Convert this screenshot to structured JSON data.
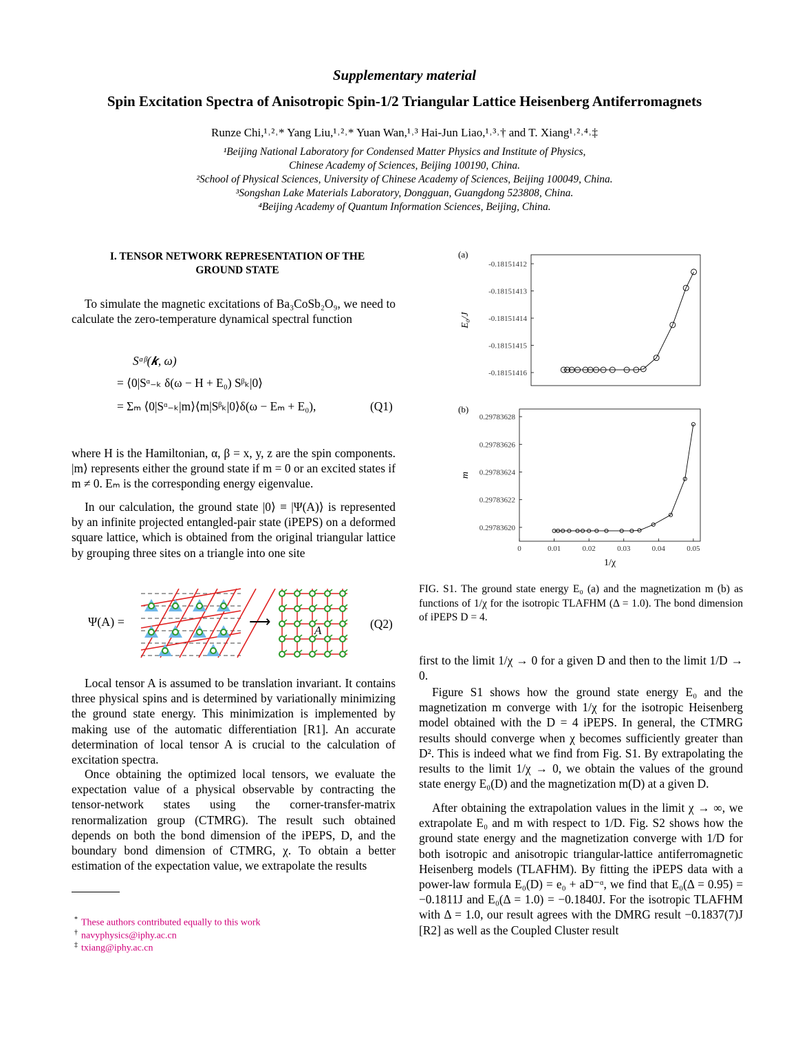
{
  "header": {
    "kind": "Supplementary material",
    "title": "Spin Excitation Spectra of Anisotropic Spin-1/2 Triangular Lattice Heisenberg Antiferromagnets",
    "authors": "Runze Chi,¹˒²˒* Yang Liu,¹˒²˒* Yuan Wan,¹˒³ Hai-Jun Liao,¹˒³˒† and T. Xiang¹˒²˒⁴˒‡",
    "affiliations": [
      "¹Beijing National Laboratory for Condensed Matter Physics and Institute of Physics,",
      "Chinese Academy of Sciences, Beijing 100190, China.",
      "²School of Physical Sciences, University of Chinese Academy of Sciences, Beijing 100049, China.",
      "³Songshan Lake Materials Laboratory, Dongguan, Guangdong 523808, China.",
      "⁴Beijing Academy of Quantum Information Sciences, Beijing, China."
    ]
  },
  "left": {
    "heading": "I.   TENSOR NETWORK REPRESENTATION OF THE GROUND STATE",
    "p1": "To simulate the magnetic excitations of Ba₃CoSb₂O₉, we need to calculate the zero-temperature dynamical spectral function",
    "equation": [
      "Sᵅᵝ(𝒌, ω)",
      "=  ⟨0|Sᵅ₋ₖ δ(ω − H + E₀) Sᵝₖ|0⟩",
      "=  Σₘ ⟨0|Sᵅ₋ₖ|m⟩⟨m|Sᵝₖ|0⟩δ(ω − Eₘ + E₀),"
    ],
    "eq1_label": "(Q1)",
    "p2": "where H is the Hamiltonian, α, β = x, y, z are the spin components. |m⟩ represents either the ground state if m = 0 or an excited states if m ≠ 0. Eₘ is the corresponding energy eigenvalue.",
    "p3": "In our calculation, the ground state |0⟩ ≡ |Ψ(A)⟩ is represented by an infinite projected entangled-pair state (iPEPS) on a deformed square lattice, which is obtained from the original triangular lattice by grouping three sites on a triangle into one site",
    "eq2_lhs": "Ψ(A) =",
    "eq2_arrow": "⟶",
    "eq2_tensor": "A",
    "eq2_label": "(Q2)",
    "p4": "Local tensor A is assumed to be translation invariant. It contains three physical spins and is determined by variationally minimizing the ground state energy. This minimization is implemented by making use of the automatic differentiation [R1]. An accurate determination of local tensor A is crucial to the calculation of excitation spectra.",
    "p5": "Once obtaining the optimized local tensors, we evaluate the expectation value of a physical observable by contracting the tensor-network states using the corner-transfer-matrix renormalization group (CTMRG). The result such obtained depends on both the bond dimension of the iPEPS, D, and the boundary bond dimension of CTMRG, χ. To obtain a better estimation of the expectation value, we extrapolate the results",
    "footnotes": [
      {
        "mark": "*",
        "text": "These authors contributed equally to this work"
      },
      {
        "mark": "†",
        "text": "navyphysics@iphy.ac.cn"
      },
      {
        "mark": "‡",
        "text": "txiang@iphy.ac.cn"
      }
    ]
  },
  "chart_data": [
    {
      "type": "line",
      "panel_label": "(a)",
      "y_label": "E₀/J",
      "color": "#000000",
      "marker": "circle",
      "x": [
        0.01,
        0.0111,
        0.0125,
        0.0143,
        0.0167,
        0.0182,
        0.02,
        0.0222,
        0.025,
        0.0294,
        0.0323,
        0.0345,
        0.0385,
        0.0435,
        0.0476,
        0.05
      ],
      "values": [
        -0.181514159,
        -0.181514159,
        -0.181514159,
        -0.181514159,
        -0.181514159,
        -0.181514159,
        -0.181514159,
        -0.181514159,
        -0.181514159,
        -0.181514159,
        -0.181514159,
        -0.1815141587,
        -0.1815141546,
        -0.1815141425,
        -0.1815141289,
        -0.181514123
      ],
      "xlim": [
        0,
        0.052
      ],
      "ylim": [
        -0.1815141648,
        -0.1815141167
      ],
      "yticks": [
        -0.18151416,
        -0.18151415,
        -0.18151414,
        -0.18151413,
        -0.18151412
      ]
    },
    {
      "type": "line",
      "panel_label": "(b)",
      "y_label": "m",
      "x_label": "1/χ",
      "color": "#000000",
      "marker": "circle",
      "x": [
        0.01,
        0.0111,
        0.0125,
        0.0143,
        0.0167,
        0.0182,
        0.02,
        0.0222,
        0.025,
        0.0294,
        0.0323,
        0.0345,
        0.0385,
        0.0435,
        0.0476,
        0.05
      ],
      "values": [
        0.2978361975,
        0.2978361975,
        0.2978361975,
        0.2978361975,
        0.2978361975,
        0.2978361975,
        0.2978361975,
        0.2978361975,
        0.2978361975,
        0.2978361975,
        0.2978361975,
        0.2978361978,
        0.297836202,
        0.297836209,
        0.297836235,
        0.2978362745
      ],
      "xlim": [
        0,
        0.052
      ],
      "ylim": [
        0.29783619,
        0.2978362855
      ],
      "xticks": [
        0,
        0.01,
        0.02,
        0.03,
        0.04,
        0.05
      ],
      "yticks": [
        {
          "value": 0.2978362,
          "label": "0.29783620"
        },
        0.29783622,
        0.29783624,
        0.29783626,
        0.29783628
      ]
    }
  ],
  "figure": {
    "caption": "FIG. S1.   The ground state energy E₀ (a) and the magnetization m (b) as functions of 1/χ for the isotropic TLAFHM (Δ = 1.0). The bond dimension of iPEPS D = 4."
  },
  "right": {
    "p1": "first to the limit 1/χ → 0 for a given D and then to the limit 1/D → 0.",
    "p2": "Figure S1 shows how the ground state energy E₀ and the magnetization m converge with 1/χ for the isotropic Heisenberg model obtained with the D = 4 iPEPS. In general, the CTMRG results should converge when χ becomes sufficiently greater than D². This is indeed what we find from Fig. S1. By extrapolating the results to the limit 1/χ → 0, we obtain the values of the ground state energy E₀(D) and the magnetization m(D) at a given D.",
    "p3": "After obtaining the extrapolation values in the limit χ → ∞, we extrapolate E₀ and m with respect to 1/D. Fig. S2 shows how the ground state energy and the magnetization converge with 1/D for both isotropic and anisotropic triangular-lattice antiferromagnetic Heisenberg models (TLAFHM). By fitting the iPEPS data with a power-law formula E₀(D) = e₀ + aD⁻ᵅ, we find that E₀(Δ = 0.95) = −0.1811J and E₀(Δ = 1.0) = −0.1840J.  For the isotropic TLAFHM with Δ = 1.0, our result agrees with the DMRG result −0.1837(7)J [R2] as well as the Coupled Cluster result"
  }
}
